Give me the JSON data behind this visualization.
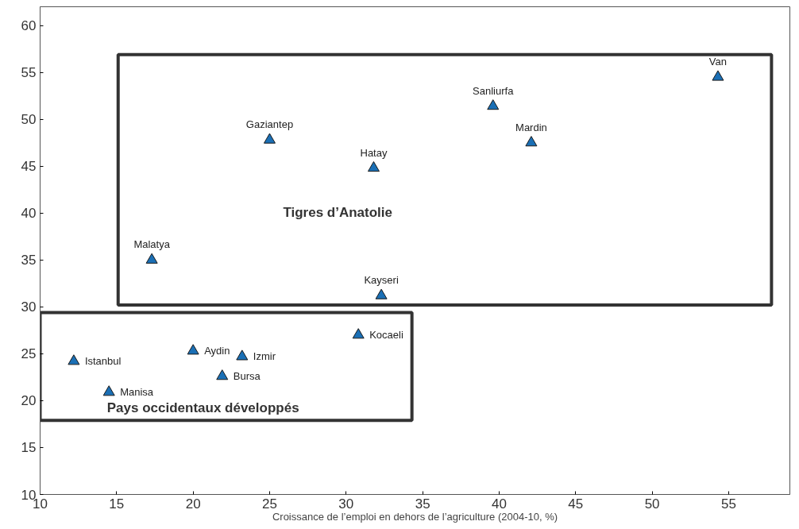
{
  "chart_data": {
    "type": "scatter",
    "xlabel": "Croissance de l’emploi en dehors de l’agriculture (2004-10, %)",
    "marker": "triangle",
    "grid": false,
    "xlim": [
      10,
      59
    ],
    "xticks": [
      10,
      15,
      20,
      25,
      30,
      35,
      40,
      45,
      50,
      55
    ],
    "ylim": [
      10,
      62
    ],
    "yticks": [
      10,
      15,
      20,
      25,
      30,
      35,
      40,
      45,
      50,
      55,
      60
    ],
    "series": [
      {
        "color": "#1a6fb5",
        "x": [
          17.3,
          25.0,
          31.8,
          39.6,
          42.1,
          54.3,
          32.3
        ],
        "values": [
          35.0,
          47.8,
          44.8,
          51.4,
          47.5,
          54.5,
          31.2
        ],
        "value_labels": [
          "Malatya",
          "Gaziantep",
          "Hatay",
          "Sanliurfa",
          "Mardin",
          "Van",
          "Kayseri"
        ]
      },
      {
        "color": "#1a6fb5",
        "x": [
          12.2,
          14.5,
          20.0,
          21.9,
          23.2,
          30.8
        ],
        "values": [
          24.2,
          20.9,
          25.3,
          22.6,
          24.7,
          27.0
        ],
        "value_labels": [
          "Istanbul",
          "Manisa",
          "Aydin",
          "Bursa",
          "Izmir",
          "Kocaeli"
        ]
      }
    ],
    "annotations": [
      "Tigres d’Anatolie",
      "Pays occidentaux développés"
    ]
  }
}
